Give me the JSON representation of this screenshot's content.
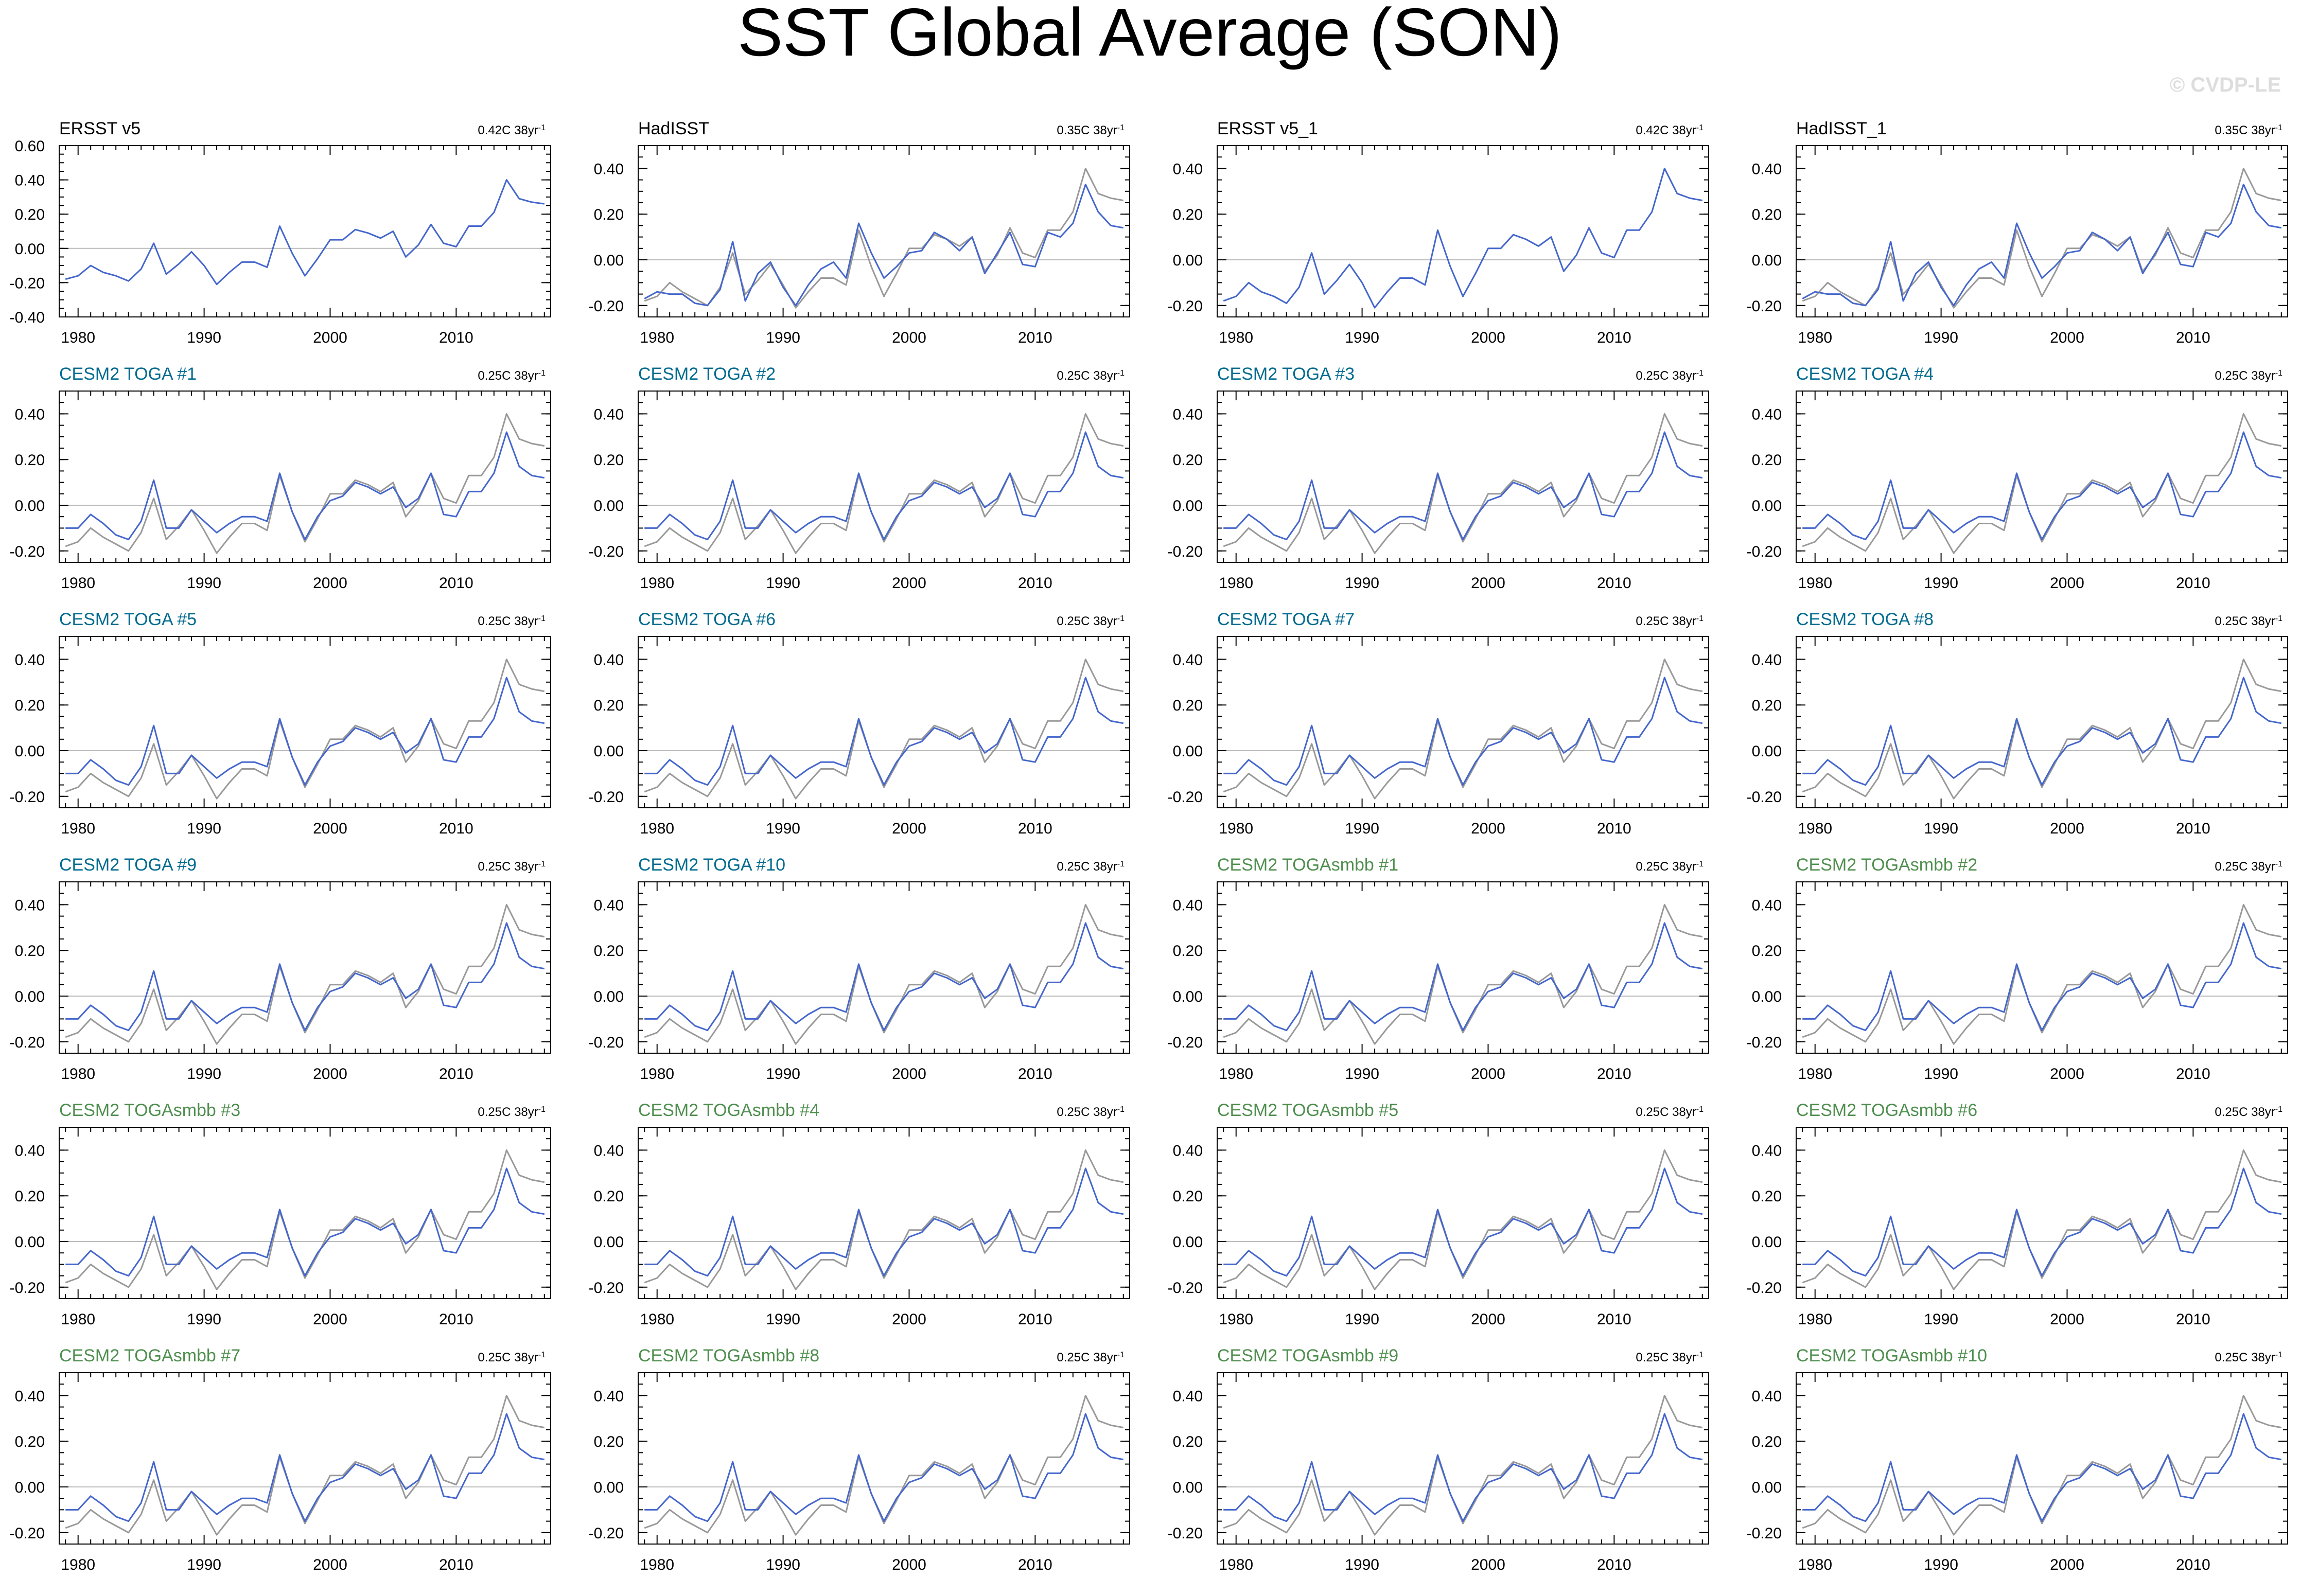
{
  "title": "SST Global Average (SON)",
  "watermark": "© CVDP-LE",
  "colors": {
    "observed_line": "#4466cc",
    "ensemble_line": "#999999",
    "zero_line": "#bbbbbb",
    "label_obs": "#000000",
    "label_toga": "#006b8f",
    "label_togasmbb": "#4f8f4f",
    "watermark": "#dddddd"
  },
  "chart_data": {
    "type": "line",
    "title": "SST Global Average (SON)",
    "x": [
      1979,
      1980,
      1981,
      1982,
      1983,
      1984,
      1985,
      1986,
      1987,
      1988,
      1989,
      1990,
      1991,
      1992,
      1993,
      1994,
      1995,
      1996,
      1997,
      1998,
      1999,
      2000,
      2001,
      2002,
      2003,
      2004,
      2005,
      2006,
      2007,
      2008,
      2009,
      2010,
      2011,
      2012,
      2013,
      2014,
      2015,
      2016,
      2017
    ],
    "xticks": [
      1980,
      1990,
      2000,
      2010
    ],
    "xlim": [
      1978.5,
      2017.5
    ],
    "ylim_first": [
      -0.4,
      0.6
    ],
    "yticks_first": [
      "0.60",
      "0.40",
      "0.20",
      "0.00",
      "-0.20",
      "-0.40"
    ],
    "ylim": [
      -0.25,
      0.5
    ],
    "yticks": [
      "0.40",
      "0.20",
      "0.00",
      "-0.20"
    ],
    "series": {
      "ersst": [
        -0.18,
        -0.16,
        -0.1,
        -0.14,
        -0.16,
        -0.19,
        -0.12,
        0.03,
        -0.15,
        -0.09,
        -0.02,
        -0.1,
        -0.21,
        -0.14,
        -0.08,
        -0.08,
        -0.11,
        0.13,
        -0.03,
        -0.16,
        -0.06,
        0.05,
        0.05,
        0.11,
        0.09,
        0.06,
        0.1,
        -0.05,
        0.02,
        0.14,
        0.03,
        0.01,
        0.13,
        0.13,
        0.21,
        0.4,
        0.29,
        0.27,
        0.26
      ],
      "hadisst": [
        -0.17,
        -0.14,
        -0.15,
        -0.15,
        -0.19,
        -0.2,
        -0.13,
        0.08,
        -0.18,
        -0.06,
        -0.01,
        -0.12,
        -0.2,
        -0.11,
        -0.04,
        -0.01,
        -0.08,
        0.16,
        0.03,
        -0.08,
        -0.03,
        0.03,
        0.04,
        0.12,
        0.09,
        0.04,
        0.1,
        -0.06,
        0.03,
        0.12,
        -0.02,
        -0.03,
        0.12,
        0.1,
        0.16,
        0.33,
        0.21,
        0.15,
        0.14
      ],
      "hadisst_gray": [
        -0.18,
        -0.16,
        -0.1,
        -0.14,
        -0.17,
        -0.2,
        -0.12,
        0.03,
        -0.15,
        -0.09,
        -0.02,
        -0.11,
        -0.21,
        -0.14,
        -0.08,
        -0.08,
        -0.11,
        0.13,
        -0.03,
        -0.16,
        -0.06,
        0.05,
        0.05,
        0.11,
        0.09,
        0.06,
        0.1,
        -0.05,
        0.02,
        0.14,
        0.03,
        0.01,
        0.13,
        0.13,
        0.21,
        0.4,
        0.29,
        0.27,
        0.26
      ],
      "ensemble_mean": [
        -0.1,
        -0.1,
        -0.04,
        -0.08,
        -0.13,
        -0.15,
        -0.07,
        0.11,
        -0.1,
        -0.1,
        -0.02,
        -0.07,
        -0.12,
        -0.08,
        -0.05,
        -0.05,
        -0.07,
        0.14,
        -0.03,
        -0.15,
        -0.05,
        0.02,
        0.04,
        0.1,
        0.08,
        0.05,
        0.08,
        -0.01,
        0.03,
        0.14,
        -0.04,
        -0.05,
        0.06,
        0.06,
        0.14,
        0.32,
        0.17,
        0.13,
        0.12
      ],
      "observed_ref": [
        -0.18,
        -0.16,
        -0.1,
        -0.14,
        -0.17,
        -0.2,
        -0.12,
        0.03,
        -0.15,
        -0.09,
        -0.02,
        -0.11,
        -0.21,
        -0.14,
        -0.08,
        -0.08,
        -0.11,
        0.13,
        -0.03,
        -0.16,
        -0.06,
        0.05,
        0.05,
        0.11,
        0.09,
        0.06,
        0.1,
        -0.05,
        0.02,
        0.14,
        0.03,
        0.01,
        0.13,
        0.13,
        0.21,
        0.4,
        0.29,
        0.27,
        0.26
      ]
    },
    "panels": [
      {
        "label": "ERSST v5",
        "trend": "0.42C 38yr",
        "group": "obs",
        "blue": "ersst",
        "gray": null,
        "first": true
      },
      {
        "label": "HadISST",
        "trend": "0.35C 38yr",
        "group": "obs",
        "blue": "hadisst",
        "gray": "hadisst_gray"
      },
      {
        "label": "ERSST v5_1",
        "trend": "0.42C 38yr",
        "group": "obs",
        "blue": "ersst",
        "gray": null
      },
      {
        "label": "HadISST_1",
        "trend": "0.35C 38yr",
        "group": "obs",
        "blue": "hadisst",
        "gray": "hadisst_gray"
      },
      {
        "label": "CESM2 TOGA #1",
        "trend": "0.25C 38yr",
        "group": "toga",
        "blue": "ensemble_mean",
        "gray": "observed_ref"
      },
      {
        "label": "CESM2 TOGA #2",
        "trend": "0.25C 38yr",
        "group": "toga",
        "blue": "ensemble_mean",
        "gray": "observed_ref"
      },
      {
        "label": "CESM2 TOGA #3",
        "trend": "0.25C 38yr",
        "group": "toga",
        "blue": "ensemble_mean",
        "gray": "observed_ref"
      },
      {
        "label": "CESM2 TOGA #4",
        "trend": "0.25C 38yr",
        "group": "toga",
        "blue": "ensemble_mean",
        "gray": "observed_ref"
      },
      {
        "label": "CESM2 TOGA #5",
        "trend": "0.25C 38yr",
        "group": "toga",
        "blue": "ensemble_mean",
        "gray": "observed_ref"
      },
      {
        "label": "CESM2 TOGA #6",
        "trend": "0.25C 38yr",
        "group": "toga",
        "blue": "ensemble_mean",
        "gray": "observed_ref"
      },
      {
        "label": "CESM2 TOGA #7",
        "trend": "0.25C 38yr",
        "group": "toga",
        "blue": "ensemble_mean",
        "gray": "observed_ref"
      },
      {
        "label": "CESM2 TOGA #8",
        "trend": "0.25C 38yr",
        "group": "toga",
        "blue": "ensemble_mean",
        "gray": "observed_ref"
      },
      {
        "label": "CESM2 TOGA #9",
        "trend": "0.25C 38yr",
        "group": "toga",
        "blue": "ensemble_mean",
        "gray": "observed_ref"
      },
      {
        "label": "CESM2 TOGA #10",
        "trend": "0.25C 38yr",
        "group": "toga",
        "blue": "ensemble_mean",
        "gray": "observed_ref"
      },
      {
        "label": "CESM2 TOGAsmbb #1",
        "trend": "0.25C 38yr",
        "group": "togasmbb",
        "blue": "ensemble_mean",
        "gray": "observed_ref"
      },
      {
        "label": "CESM2 TOGAsmbb #2",
        "trend": "0.25C 38yr",
        "group": "togasmbb",
        "blue": "ensemble_mean",
        "gray": "observed_ref"
      },
      {
        "label": "CESM2 TOGAsmbb #3",
        "trend": "0.25C 38yr",
        "group": "togasmbb",
        "blue": "ensemble_mean",
        "gray": "observed_ref"
      },
      {
        "label": "CESM2 TOGAsmbb #4",
        "trend": "0.25C 38yr",
        "group": "togasmbb",
        "blue": "ensemble_mean",
        "gray": "observed_ref"
      },
      {
        "label": "CESM2 TOGAsmbb #5",
        "trend": "0.25C 38yr",
        "group": "togasmbb",
        "blue": "ensemble_mean",
        "gray": "observed_ref"
      },
      {
        "label": "CESM2 TOGAsmbb #6",
        "trend": "0.25C 38yr",
        "group": "togasmbb",
        "blue": "ensemble_mean",
        "gray": "observed_ref"
      },
      {
        "label": "CESM2 TOGAsmbb #7",
        "trend": "0.25C 38yr",
        "group": "togasmbb",
        "blue": "ensemble_mean",
        "gray": "observed_ref"
      },
      {
        "label": "CESM2 TOGAsmbb #8",
        "trend": "0.25C 38yr",
        "group": "togasmbb",
        "blue": "ensemble_mean",
        "gray": "observed_ref"
      },
      {
        "label": "CESM2 TOGAsmbb #9",
        "trend": "0.25C 38yr",
        "group": "togasmbb",
        "blue": "ensemble_mean",
        "gray": "observed_ref"
      },
      {
        "label": "CESM2 TOGAsmbb #10",
        "trend": "0.25C 38yr",
        "group": "togasmbb",
        "blue": "ensemble_mean",
        "gray": "observed_ref"
      }
    ]
  }
}
